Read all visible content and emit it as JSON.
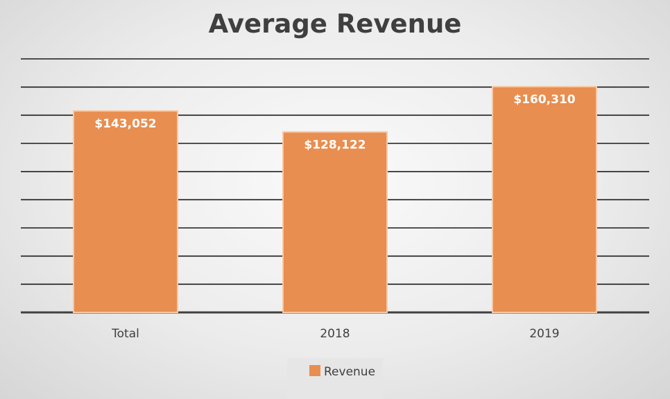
{
  "chart_data": {
    "type": "bar",
    "title": "Average Revenue",
    "categories": [
      "Total",
      "2018",
      "2019"
    ],
    "series": [
      {
        "name": "Revenue",
        "values": [
          143052,
          128122,
          160310
        ],
        "labels": [
          "$143,052",
          "$128,122",
          "$160,310"
        ]
      }
    ],
    "xlabel": "",
    "ylabel": "",
    "ylim": [
      0,
      180000
    ],
    "grid": true,
    "legend": "bottom",
    "colors": {
      "bar": "#e88e50",
      "bar_edge": "#f7c9a6",
      "grid": "#1a1a1a"
    }
  }
}
